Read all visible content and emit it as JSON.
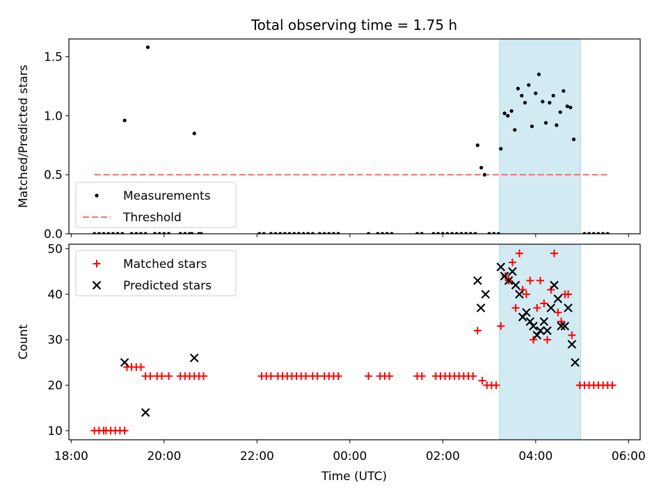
{
  "chart_data": {
    "title": "Total observing time = 1.75 h",
    "xlabel": "Time (UTC)",
    "x_unit": "hours (UTC, continuing past midnight)",
    "xlim": [
      17.95,
      30.25
    ],
    "x_ticks": [
      {
        "value": 18,
        "label": "18:00"
      },
      {
        "value": 20,
        "label": "20:00"
      },
      {
        "value": 22,
        "label": "22:00"
      },
      {
        "value": 24,
        "label": "00:00"
      },
      {
        "value": 26,
        "label": "02:00"
      },
      {
        "value": 28,
        "label": "04:00"
      },
      {
        "value": 30,
        "label": "06:00"
      }
    ],
    "highlight": {
      "start": 27.22,
      "end": 28.97,
      "color": "#add8e6"
    },
    "colors": {
      "measurements": "#000000",
      "threshold": "#ff6b6b",
      "matched": "#ff0000",
      "predicted": "#000000",
      "highlight": "#add8e6"
    },
    "panels": [
      {
        "type": "scatter",
        "ylabel": "Matched/Predicted stars",
        "ylim": [
          0,
          1.65
        ],
        "y_ticks": [
          0.0,
          0.5,
          1.0,
          1.5
        ],
        "y_tick_labels": [
          "0.0",
          "0.5",
          "1.0",
          "1.5"
        ],
        "legend": {
          "position": "lower left",
          "entries": [
            "Measurements",
            "Threshold"
          ]
        },
        "threshold": {
          "name": "Threshold",
          "value": 0.5,
          "x_range": [
            18.5,
            29.55
          ]
        },
        "series": [
          {
            "name": "Measurements",
            "marker": "dot",
            "points": [
              [
                18.5,
                0
              ],
              [
                18.6,
                0
              ],
              [
                18.7,
                0
              ],
              [
                18.8,
                0
              ],
              [
                18.9,
                0
              ],
              [
                19.0,
                0
              ],
              [
                19.1,
                0
              ],
              [
                19.15,
                0.96
              ],
              [
                19.3,
                0
              ],
              [
                19.4,
                0
              ],
              [
                19.5,
                0
              ],
              [
                19.6,
                0
              ],
              [
                19.65,
                1.58
              ],
              [
                19.8,
                0
              ],
              [
                19.9,
                0
              ],
              [
                20.0,
                0
              ],
              [
                20.1,
                0
              ],
              [
                20.35,
                0
              ],
              [
                20.45,
                0
              ],
              [
                20.55,
                0
              ],
              [
                20.6,
                0
              ],
              [
                20.65,
                0.85
              ],
              [
                20.75,
                0
              ],
              [
                20.8,
                0
              ],
              [
                22.05,
                0
              ],
              [
                22.15,
                0
              ],
              [
                22.3,
                0
              ],
              [
                22.4,
                0
              ],
              [
                22.5,
                0
              ],
              [
                22.6,
                0
              ],
              [
                22.7,
                0
              ],
              [
                22.8,
                0
              ],
              [
                22.9,
                0
              ],
              [
                23.0,
                0
              ],
              [
                23.1,
                0
              ],
              [
                23.2,
                0
              ],
              [
                23.35,
                0
              ],
              [
                23.45,
                0
              ],
              [
                23.55,
                0
              ],
              [
                23.65,
                0
              ],
              [
                23.75,
                0
              ],
              [
                24.4,
                0
              ],
              [
                24.6,
                0
              ],
              [
                24.7,
                0
              ],
              [
                24.8,
                0
              ],
              [
                24.9,
                0
              ],
              [
                25.45,
                0
              ],
              [
                25.55,
                0
              ],
              [
                25.8,
                0
              ],
              [
                25.9,
                0
              ],
              [
                26.0,
                0
              ],
              [
                26.1,
                0
              ],
              [
                26.2,
                0
              ],
              [
                26.3,
                0
              ],
              [
                26.4,
                0
              ],
              [
                26.5,
                0
              ],
              [
                26.6,
                0
              ],
              [
                26.7,
                0
              ],
              [
                26.75,
                0.75
              ],
              [
                26.83,
                0.56
              ],
              [
                26.9,
                0.5
              ],
              [
                27.0,
                0
              ],
              [
                27.1,
                0
              ],
              [
                27.2,
                0
              ],
              [
                27.25,
                0.72
              ],
              [
                27.33,
                1.02
              ],
              [
                27.4,
                1.0
              ],
              [
                27.48,
                1.04
              ],
              [
                27.55,
                0.88
              ],
              [
                27.62,
                1.23
              ],
              [
                27.7,
                1.17
              ],
              [
                27.77,
                1.11
              ],
              [
                27.85,
                1.26
              ],
              [
                27.92,
                0.91
              ],
              [
                28.0,
                1.19
              ],
              [
                28.07,
                1.35
              ],
              [
                28.15,
                1.12
              ],
              [
                28.22,
                0.94
              ],
              [
                28.3,
                1.11
              ],
              [
                28.38,
                1.17
              ],
              [
                28.45,
                0.92
              ],
              [
                28.53,
                1.03
              ],
              [
                28.6,
                1.21
              ],
              [
                28.68,
                1.08
              ],
              [
                28.75,
                1.07
              ],
              [
                28.82,
                0.8
              ],
              [
                29.05,
                0
              ],
              [
                29.15,
                0
              ],
              [
                29.25,
                0
              ],
              [
                29.35,
                0
              ],
              [
                29.45,
                0
              ],
              [
                29.55,
                0
              ]
            ]
          }
        ]
      },
      {
        "type": "scatter",
        "ylabel": "Count",
        "ylim": [
          8,
          51
        ],
        "y_ticks": [
          10,
          20,
          30,
          40,
          50
        ],
        "y_tick_labels": [
          "10",
          "20",
          "30",
          "40",
          "50"
        ],
        "legend": {
          "position": "upper left",
          "entries": [
            "Matched stars",
            "Predicted stars"
          ]
        },
        "series": [
          {
            "name": "Matched stars",
            "marker": "plus",
            "points": [
              [
                18.5,
                10
              ],
              [
                18.6,
                10
              ],
              [
                18.7,
                10
              ],
              [
                18.75,
                10
              ],
              [
                18.85,
                10
              ],
              [
                18.95,
                10
              ],
              [
                19.05,
                10
              ],
              [
                19.15,
                10
              ],
              [
                19.2,
                24
              ],
              [
                19.3,
                24
              ],
              [
                19.4,
                24
              ],
              [
                19.5,
                24
              ],
              [
                19.6,
                22
              ],
              [
                19.7,
                22
              ],
              [
                19.85,
                22
              ],
              [
                19.95,
                22
              ],
              [
                20.1,
                22
              ],
              [
                20.35,
                22
              ],
              [
                20.45,
                22
              ],
              [
                20.55,
                22
              ],
              [
                20.65,
                22
              ],
              [
                20.75,
                22
              ],
              [
                20.85,
                22
              ],
              [
                22.1,
                22
              ],
              [
                22.2,
                22
              ],
              [
                22.3,
                22
              ],
              [
                22.45,
                22
              ],
              [
                22.55,
                22
              ],
              [
                22.65,
                22
              ],
              [
                22.75,
                22
              ],
              [
                22.85,
                22
              ],
              [
                22.95,
                22
              ],
              [
                23.05,
                22
              ],
              [
                23.2,
                22
              ],
              [
                23.3,
                22
              ],
              [
                23.45,
                22
              ],
              [
                23.55,
                22
              ],
              [
                23.65,
                22
              ],
              [
                23.75,
                22
              ],
              [
                24.4,
                22
              ],
              [
                24.65,
                22
              ],
              [
                24.75,
                22
              ],
              [
                24.85,
                22
              ],
              [
                25.45,
                22
              ],
              [
                25.55,
                22
              ],
              [
                25.85,
                22
              ],
              [
                25.95,
                22
              ],
              [
                26.05,
                22
              ],
              [
                26.15,
                22
              ],
              [
                26.25,
                22
              ],
              [
                26.35,
                22
              ],
              [
                26.45,
                22
              ],
              [
                26.55,
                22
              ],
              [
                26.65,
                22
              ],
              [
                26.75,
                32
              ],
              [
                26.85,
                21
              ],
              [
                26.95,
                20
              ],
              [
                27.05,
                20
              ],
              [
                27.15,
                20
              ],
              [
                27.25,
                33
              ],
              [
                27.35,
                44
              ],
              [
                27.42,
                43
              ],
              [
                27.5,
                47
              ],
              [
                27.57,
                37
              ],
              [
                27.65,
                49
              ],
              [
                27.72,
                41
              ],
              [
                27.8,
                40
              ],
              [
                27.88,
                43
              ],
              [
                27.95,
                30
              ],
              [
                28.03,
                37
              ],
              [
                28.1,
                43
              ],
              [
                28.18,
                38
              ],
              [
                28.25,
                30
              ],
              [
                28.33,
                41
              ],
              [
                28.4,
                49
              ],
              [
                28.48,
                36
              ],
              [
                28.55,
                34
              ],
              [
                28.63,
                40
              ],
              [
                28.7,
                40
              ],
              [
                28.78,
                31
              ],
              [
                28.95,
                20
              ],
              [
                29.05,
                20
              ],
              [
                29.15,
                20
              ],
              [
                29.25,
                20
              ],
              [
                29.35,
                20
              ],
              [
                29.45,
                20
              ],
              [
                29.55,
                20
              ],
              [
                29.65,
                20
              ]
            ]
          },
          {
            "name": "Predicted stars",
            "marker": "x",
            "points": [
              [
                19.15,
                25
              ],
              [
                19.6,
                14
              ],
              [
                20.65,
                26
              ],
              [
                26.75,
                43
              ],
              [
                26.82,
                37
              ],
              [
                26.92,
                40
              ],
              [
                27.25,
                46
              ],
              [
                27.33,
                44
              ],
              [
                27.42,
                43
              ],
              [
                27.5,
                45
              ],
              [
                27.57,
                42
              ],
              [
                27.65,
                40
              ],
              [
                27.72,
                35
              ],
              [
                27.8,
                36
              ],
              [
                27.88,
                34
              ],
              [
                27.95,
                33
              ],
              [
                28.03,
                31
              ],
              [
                28.1,
                32
              ],
              [
                28.18,
                34
              ],
              [
                28.25,
                32
              ],
              [
                28.33,
                37
              ],
              [
                28.4,
                42
              ],
              [
                28.48,
                39
              ],
              [
                28.55,
                33
              ],
              [
                28.63,
                33
              ],
              [
                28.7,
                37
              ],
              [
                28.78,
                29
              ],
              [
                28.85,
                25
              ]
            ]
          }
        ]
      }
    ]
  }
}
